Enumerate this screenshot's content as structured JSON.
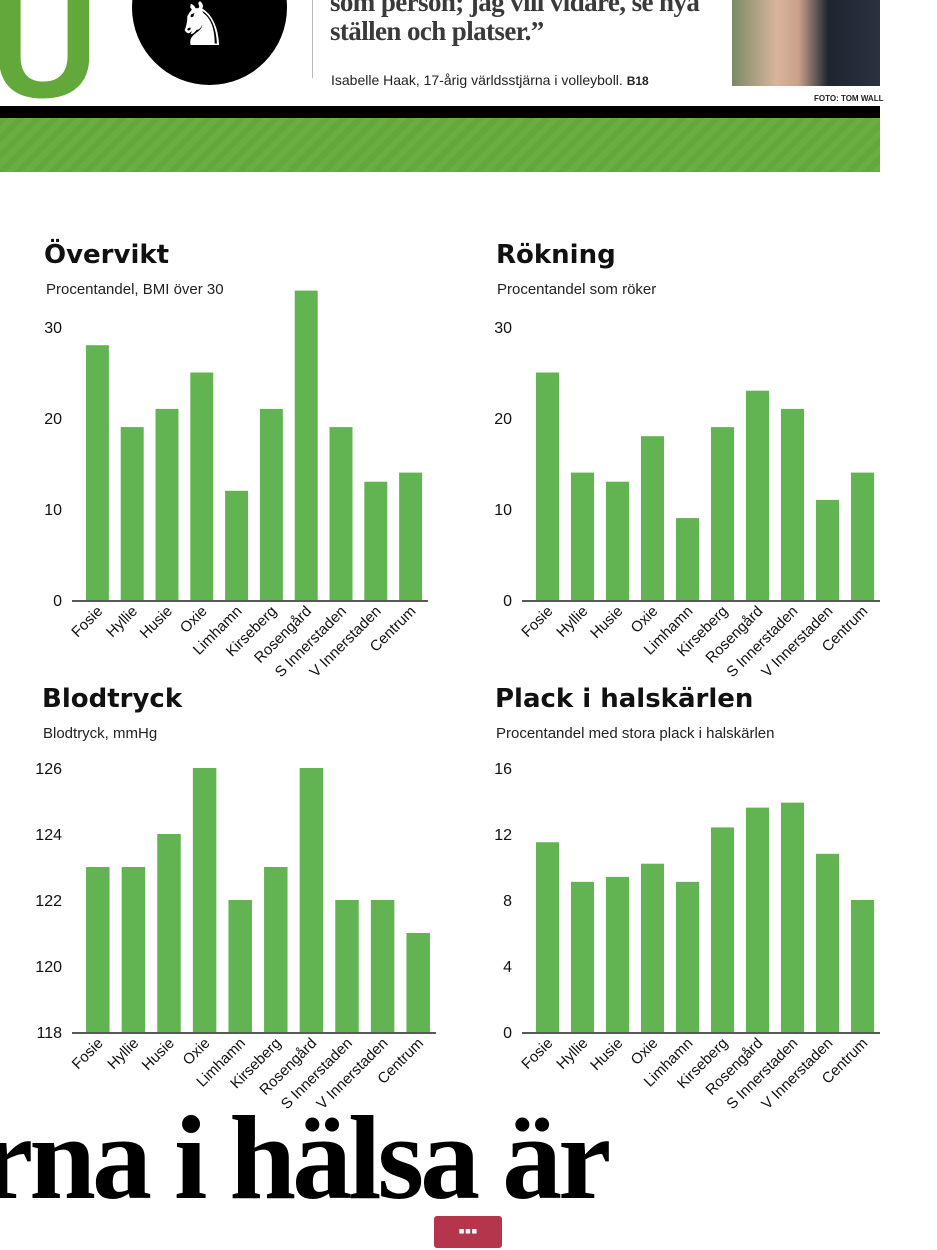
{
  "masthead": {
    "logo_text": "U",
    "quote": "som person; jag vill vidare, se nya ställen och platser.”",
    "byline": "Isabelle Haak, 17-årig världsstjärna i volleyboll.",
    "page_ref": "B18",
    "photo_credit": "FOTO: TOM WALL"
  },
  "headline": "rna i hälsa är",
  "more_button": "▪▪▪",
  "colors": {
    "bar": "#62b352",
    "brand_green": "#62a83a",
    "more_button": "#b5354c"
  },
  "chart_data": [
    {
      "type": "bar",
      "title": "Övervikt",
      "subtitle": "Procentandel, BMI över 30",
      "categories": [
        "Fosie",
        "Hyllie",
        "Husie",
        "Oxie",
        "Limhamn",
        "Kirseberg",
        "Rosengård",
        "S Innerstaden",
        "V Innerstaden",
        "Centrum"
      ],
      "values": [
        28,
        19,
        21,
        25,
        12,
        21,
        34,
        19,
        13,
        14
      ],
      "ylim": [
        0,
        30
      ],
      "yticks": [
        0,
        10,
        20,
        30
      ]
    },
    {
      "type": "bar",
      "title": "Rökning",
      "subtitle": "Procentandel som röker",
      "categories": [
        "Fosie",
        "Hyllie",
        "Husie",
        "Oxie",
        "Limhamn",
        "Kirseberg",
        "Rosengård",
        "S Innerstaden",
        "V Innerstaden",
        "Centrum"
      ],
      "values": [
        25,
        14,
        13,
        18,
        9,
        19,
        23,
        21,
        11,
        14
      ],
      "ylim": [
        0,
        30
      ],
      "yticks": [
        0,
        10,
        20,
        30
      ]
    },
    {
      "type": "bar",
      "title": "Blodtryck",
      "subtitle": "Blodtryck, mmHg",
      "categories": [
        "Fosie",
        "Hyllie",
        "Husie",
        "Oxie",
        "Limhamn",
        "Kirseberg",
        "Rosengård",
        "S Innerstaden",
        "V Innerstaden",
        "Centrum"
      ],
      "values": [
        123,
        123,
        124,
        126,
        122,
        123,
        126,
        122,
        122,
        121
      ],
      "ylim": [
        118,
        126
      ],
      "yticks": [
        118,
        120,
        122,
        124,
        126
      ]
    },
    {
      "type": "bar",
      "title": "Plack i halskärlen",
      "subtitle": "Procentandel med stora plack i halskärlen",
      "categories": [
        "Fosie",
        "Hyllie",
        "Husie",
        "Oxie",
        "Limhamn",
        "Kirseberg",
        "Rosengård",
        "S Innerstaden",
        "V Innerstaden",
        "Centrum"
      ],
      "values": [
        11.5,
        9.1,
        9.4,
        10.2,
        9.1,
        12.4,
        13.6,
        13.9,
        10.8,
        8.0
      ],
      "ylim": [
        0,
        16
      ],
      "yticks": [
        0,
        4,
        8,
        12,
        16
      ]
    }
  ]
}
